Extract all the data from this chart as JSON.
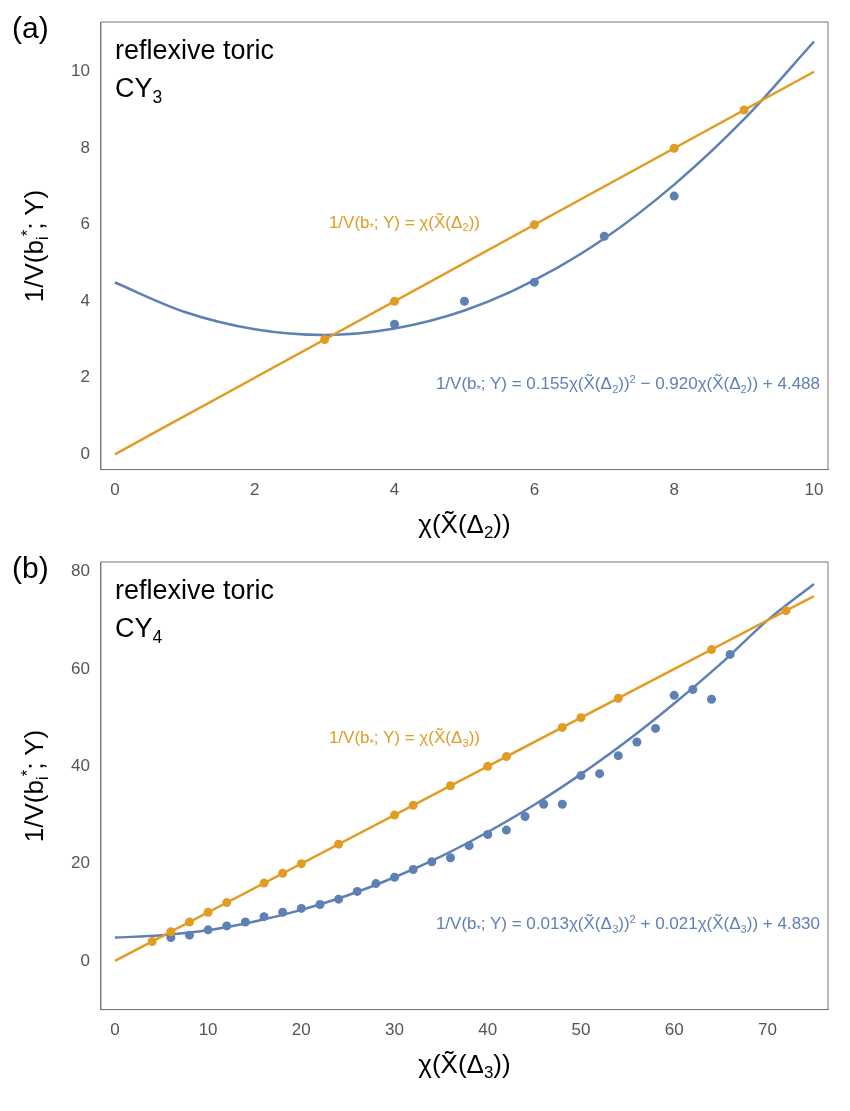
{
  "chart_data": [
    {
      "type": "scatter",
      "title": "(a)",
      "xlabel": "χ(X̃(Δ$_{2}$))",
      "ylabel": "1/V(b$_{i}$$^{*}$; Y)",
      "xlim": [
        -0.2,
        10.2
      ],
      "ylim": [
        -0.4,
        11.3
      ],
      "xticks": [
        0,
        2,
        4,
        6,
        8,
        10
      ],
      "yticks": [
        0,
        2,
        4,
        6,
        8,
        10
      ],
      "grid": false,
      "legend": false,
      "marker": "circle",
      "series": [
        {
          "type": "line",
          "marker": "none",
          "name": "1/V(b$_{*}$; Y) = χ(X̃(Δ$_{2}$))",
          "color": "#e19c24",
          "x": [
            0,
            10
          ],
          "values": [
            0,
            10
          ]
        },
        {
          "type": "line",
          "marker": "none",
          "name": "1/V(b$_{*}$; Y) = 0.155χ(X̃(Δ$_{2}$))$^{2}$ − 0.920χ(X̃(Δ$_{2}$)) + 4.488",
          "color": "#5e81b5",
          "x": [
            0,
            1,
            2,
            3,
            4,
            5,
            6,
            7,
            8,
            9,
            10
          ],
          "values": [
            4.49,
            3.72,
            3.27,
            3.12,
            3.29,
            3.76,
            4.55,
            5.64,
            7.05,
            8.76,
            10.79
          ]
        },
        {
          "type": "scatter",
          "color": "#e19c24",
          "x": [
            3,
            4,
            6,
            8,
            9
          ],
          "values": [
            3,
            4,
            6,
            8,
            9
          ]
        },
        {
          "type": "scatter",
          "color": "#5e81b5",
          "x": [
            4,
            5,
            6,
            7,
            8
          ],
          "values": [
            3.4,
            4,
            4.5,
            5.7,
            6.75
          ]
        }
      ],
      "annotations": [
        "reflexive toric",
        "CY$_{3}$"
      ]
    },
    {
      "type": "scatter",
      "title": "(b)",
      "xlabel": "χ(X̃(Δ$_{3}$))",
      "ylabel": "1/V(b$_{i}$$^{*}$; Y)",
      "xlim": [
        -1.5,
        76.5
      ],
      "ylim": [
        -10,
        82
      ],
      "xticks": [
        0,
        10,
        20,
        30,
        40,
        50,
        60,
        70
      ],
      "yticks": [
        0,
        20,
        40,
        60,
        80
      ],
      "grid": false,
      "legend": false,
      "marker": "circle",
      "series": [
        {
          "type": "line",
          "marker": "none",
          "name": "1/V(b$_{*}$; Y) = χ(X̃(Δ$_{3}$))",
          "color": "#e19c24",
          "x": [
            0,
            75
          ],
          "values": [
            0,
            75
          ]
        },
        {
          "type": "line",
          "marker": "none",
          "name": "1/V(b$_{*}$; Y) = 0.013χ(X̃(Δ$_{3}$))$^{2}$ + 0.021χ(X̃(Δ$_{3}$)) + 4.830",
          "color": "#5e81b5",
          "x": [
            0,
            5,
            10,
            15,
            20,
            25,
            30,
            35,
            40,
            45,
            50,
            55,
            60,
            65,
            70,
            75
          ],
          "values": [
            4.8,
            5.3,
            6.3,
            8.1,
            10.5,
            13.5,
            17.2,
            21.5,
            26.5,
            32.1,
            38.4,
            45.3,
            52.9,
            61.1,
            70,
            77.5
          ]
        },
        {
          "type": "scatter",
          "color": "#e19c24",
          "x": [
            4,
            6,
            8,
            10,
            12,
            16,
            18,
            20,
            24,
            30,
            32,
            36,
            40,
            42,
            48,
            50,
            54,
            64,
            72
          ],
          "values": [
            4,
            6,
            8,
            10,
            12,
            16,
            18,
            20,
            24,
            30,
            32,
            36,
            40,
            42,
            48,
            50,
            54,
            64,
            72
          ]
        },
        {
          "type": "scatter",
          "color": "#5e81b5",
          "x": [
            6,
            8,
            10,
            12,
            14,
            16,
            18,
            20,
            22,
            24,
            26,
            28,
            30,
            32,
            34,
            36,
            38,
            40,
            42,
            44,
            46,
            48,
            50,
            52,
            54,
            56,
            58,
            60,
            62,
            64,
            66
          ],
          "values": [
            4.8,
            5.3,
            6.4,
            7.2,
            8,
            9.1,
            10,
            10.8,
            11.6,
            12.7,
            14.3,
            15.9,
            17.2,
            18.8,
            20.4,
            21.2,
            23.7,
            26,
            26.9,
            29.7,
            32.2,
            32.2,
            38.1,
            38.5,
            42.2,
            45,
            47.8,
            54.6,
            55.8,
            53.8,
            63
          ]
        }
      ],
      "annotations": [
        "reflexive toric",
        "CY$_{4}$"
      ]
    }
  ]
}
